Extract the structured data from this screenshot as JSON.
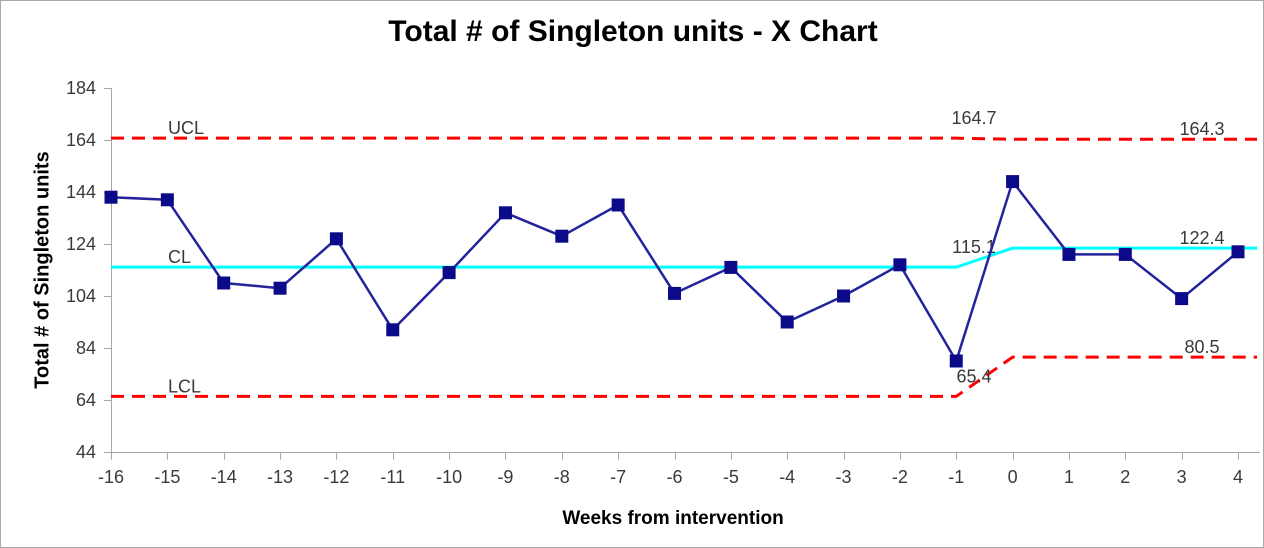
{
  "window": {
    "background": "#ffffff",
    "border_color": "#a9a9a9"
  },
  "chart_data": {
    "type": "line",
    "title": "Total # of Singleton units - X Chart",
    "xlabel": "Weeks from intervention",
    "ylabel": "Total # of Singleton units",
    "x": [
      -16,
      -15,
      -14,
      -13,
      -12,
      -11,
      -10,
      -9,
      -8,
      -7,
      -6,
      -5,
      -4,
      -3,
      -2,
      -1,
      0,
      1,
      2,
      3,
      4
    ],
    "series": [
      {
        "name": "Total # of Singleton units",
        "marker": "square",
        "marker_color": "#0b0b8a",
        "line_color": "#23239b",
        "values": [
          142,
          141,
          109,
          107,
          126,
          91,
          113,
          136,
          127,
          139,
          105,
          115,
          94,
          104,
          116,
          79,
          148,
          120,
          120,
          103,
          121
        ]
      }
    ],
    "ylim": [
      44,
      184
    ],
    "ytick_step": 20,
    "yticks": [
      44,
      64,
      84,
      104,
      124,
      144,
      164,
      184
    ],
    "grid": false,
    "legend": "none",
    "axis_color": "#a6a6a6",
    "tick_label_color": "#3a3a3a",
    "annotation_color": "#3a3a3a",
    "step_x_range": [
      -1,
      0
    ],
    "control_lines": [
      {
        "id": "ucl",
        "label": "UCL",
        "value_before": 164.7,
        "value_after": 164.3,
        "annotation_before": "164.7",
        "annotation_after": "164.3",
        "color": "#ff0000",
        "dash": true
      },
      {
        "id": "cl",
        "label": "CL",
        "value_before": 115.1,
        "value_after": 122.4,
        "annotation_before": "115.1",
        "annotation_after": "122.4",
        "color": "#00ffff",
        "dash": false
      },
      {
        "id": "lcl",
        "label": "LCL",
        "value_before": 65.4,
        "value_after": 80.5,
        "annotation_before": "65.4",
        "annotation_after": "80.5",
        "color": "#ff0000",
        "dash": true
      }
    ]
  }
}
